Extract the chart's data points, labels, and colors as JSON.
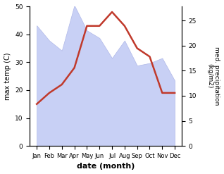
{
  "months": [
    "Jan",
    "Feb",
    "Mar",
    "Apr",
    "May",
    "Jun",
    "Jul",
    "Aug",
    "Sep",
    "Oct",
    "Nov",
    "Dec"
  ],
  "max_temp_C": [
    15,
    19,
    22,
    28,
    43,
    43,
    48,
    43,
    35,
    32,
    19,
    19
  ],
  "precip_kg": [
    24,
    21,
    19,
    28,
    23,
    21.5,
    17.5,
    21,
    16,
    16.5,
    17.5,
    13
  ],
  "temp_color": "#c0392b",
  "precip_fill_color": "#c8d0f5",
  "precip_edge_color": "#b0b8e8",
  "ylabel_left": "max temp (C)",
  "ylabel_right": "med. precipitation\n(kg/m2)",
  "xlabel": "date (month)",
  "ylim_left": [
    0,
    50
  ],
  "ylim_right": [
    0,
    27.8
  ],
  "temp_linewidth": 1.8,
  "precip_linewidth": 0.5
}
